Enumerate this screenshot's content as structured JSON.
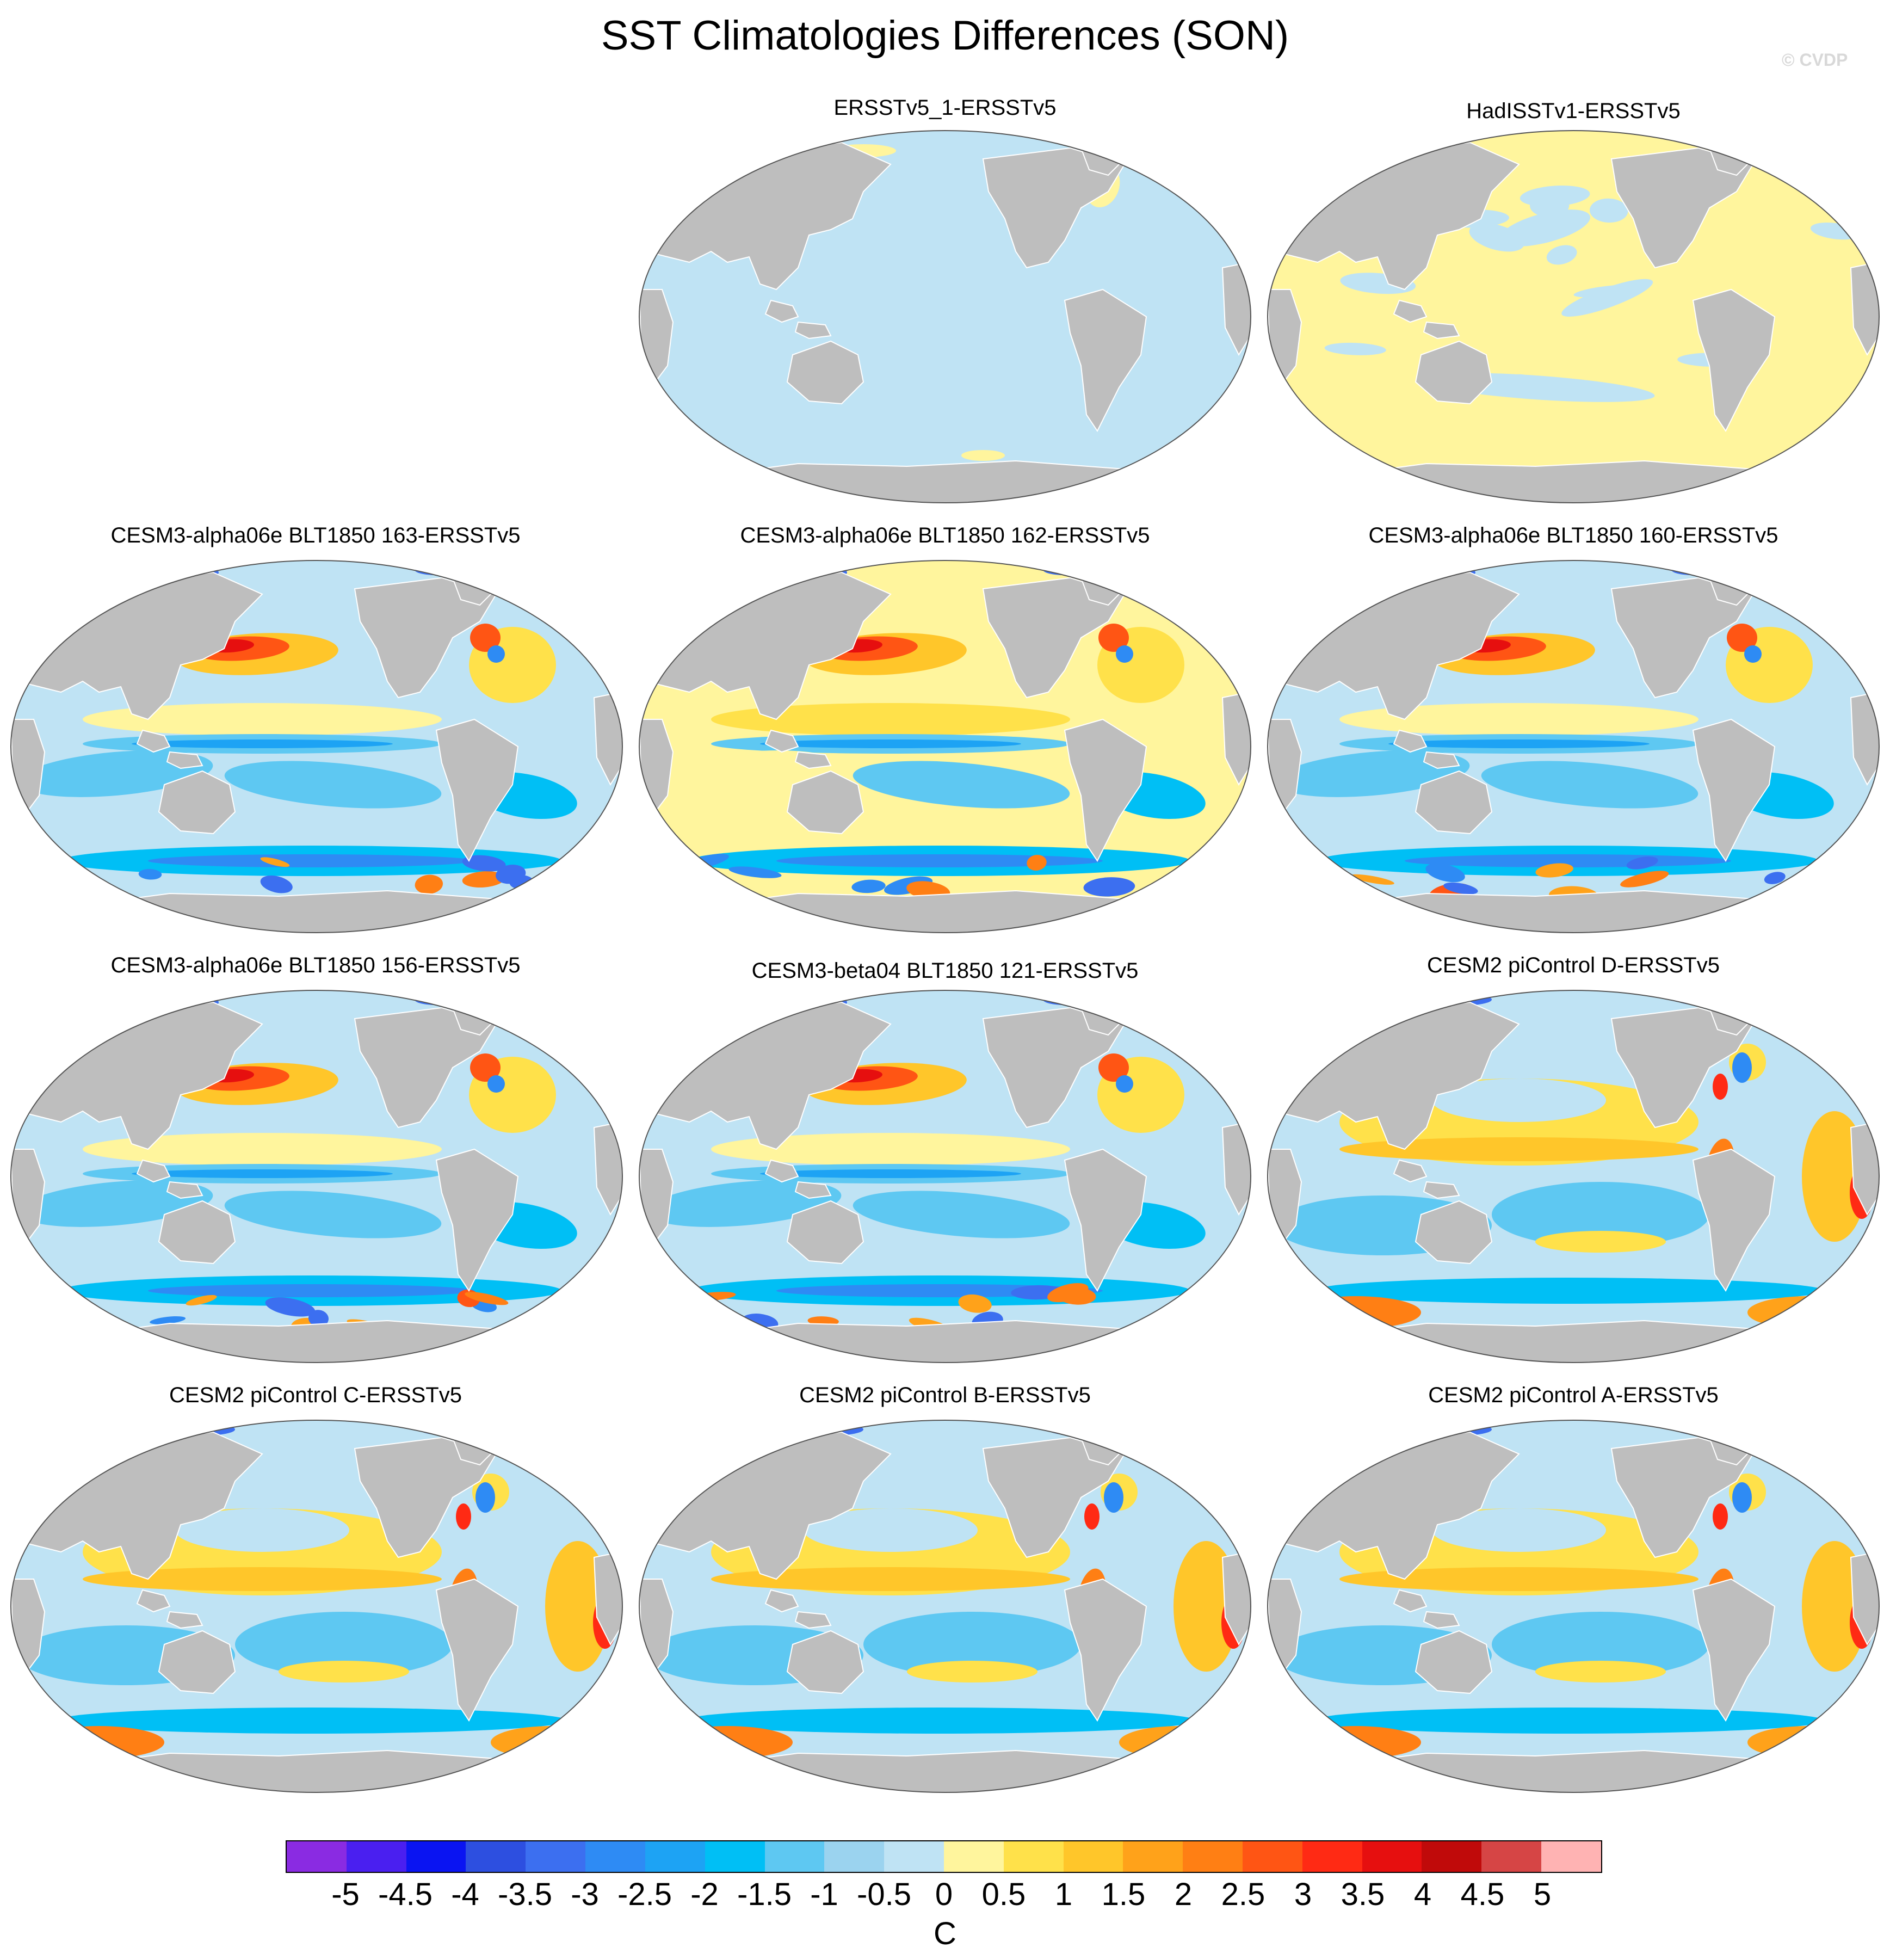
{
  "title": "SST Climatologies Differences (SON)",
  "credit": "© CVDP",
  "colors": {
    "ocean": "#bfe3f4",
    "land": "#bebebe",
    "ice": "#ffffff",
    "outline": "#555555"
  },
  "panels": [
    {
      "title": "ERSSTv5_1-ERSSTv5",
      "pattern": "near-zero-negative"
    },
    {
      "title": "HadISSTv1-ERSSTv5",
      "pattern": "near-zero-positive"
    },
    {
      "title": "CESM3-alpha06e BLT1850 163-ERSSTv5",
      "pattern": "cesm3-cold"
    },
    {
      "title": "CESM3-alpha06e BLT1850 162-ERSSTv5",
      "pattern": "cesm3-warm"
    },
    {
      "title": "CESM3-alpha06e BLT1850 160-ERSSTv5",
      "pattern": "cesm3-cold"
    },
    {
      "title": "CESM3-alpha06e BLT1850 156-ERSSTv5",
      "pattern": "cesm3-cold"
    },
    {
      "title": "CESM3-beta04 BLT1850 121-ERSSTv5",
      "pattern": "cesm3-cold"
    },
    {
      "title": "CESM2 piControl D-ERSSTv5",
      "pattern": "cesm2"
    },
    {
      "title": "CESM2 piControl C-ERSSTv5",
      "pattern": "cesm2"
    },
    {
      "title": "CESM2 piControl B-ERSSTv5",
      "pattern": "cesm2"
    },
    {
      "title": "CESM2 piControl A-ERSSTv5",
      "pattern": "cesm2"
    }
  ],
  "colorbar": {
    "unit": "C",
    "ticks": [
      "-5",
      "-4.5",
      "-4",
      "-3.5",
      "-3",
      "-2.5",
      "-2",
      "-1.5",
      "-1",
      "-0.5",
      "0",
      "0.5",
      "1",
      "1.5",
      "2",
      "2.5",
      "3",
      "3.5",
      "4",
      "4.5",
      "5"
    ],
    "colors": [
      "#8a2be2",
      "#4a1ff0",
      "#0a14f2",
      "#2d4fe0",
      "#3c6ff0",
      "#2e8bf4",
      "#1da3f4",
      "#00bff5",
      "#5ec8f2",
      "#9bd3ef",
      "#bfe3f4",
      "#fff59d",
      "#ffe14a",
      "#ffc62a",
      "#ffa21a",
      "#ff7f14",
      "#ff5514",
      "#ff2a14",
      "#e60f0f",
      "#c00a0a",
      "#d64545",
      "#ffb3b3"
    ]
  }
}
